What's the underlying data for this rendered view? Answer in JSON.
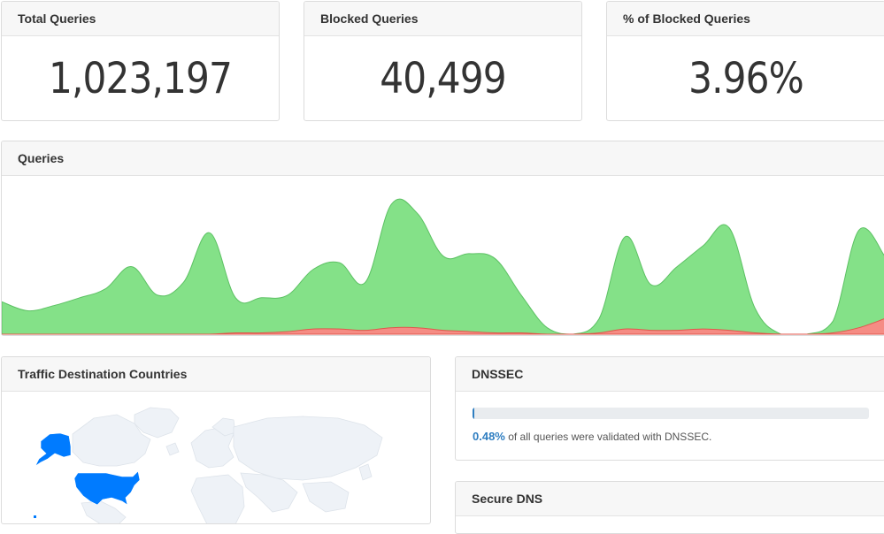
{
  "stats": {
    "total": {
      "label": "Total Queries",
      "value": "1,023,197"
    },
    "blocked": {
      "label": "Blocked Queries",
      "value": "40,499"
    },
    "percent": {
      "label": "% of Blocked Queries",
      "value": "3.96%"
    }
  },
  "queries_card": {
    "title": "Queries"
  },
  "traffic_card": {
    "title": "Traffic Destination Countries"
  },
  "dnssec_card": {
    "title": "DNSSEC",
    "percent_value": "0.48%",
    "fraction": 0.0048,
    "description": "of all queries were validated with DNSSEC."
  },
  "secure_dns_card": {
    "title": "Secure DNS"
  },
  "colors": {
    "allowed": "#84e188",
    "allowed_stroke": "#5cc163",
    "blocked": "#f58c84",
    "blocked_stroke": "#e0564b",
    "highlight_country": "#007bff",
    "map_land": "#eef2f7"
  },
  "chart_data": {
    "type": "area",
    "ylim": [
      0,
      100
    ],
    "series": [
      {
        "key": "allowed",
        "values": [
          25,
          18,
          22,
          28,
          35,
          52,
          30,
          40,
          78,
          28,
          28,
          30,
          50,
          55,
          40,
          100,
          93,
          60,
          62,
          58,
          30,
          5,
          0,
          12,
          75,
          38,
          52,
          68,
          82,
          20,
          0,
          0,
          10,
          80,
          60
        ]
      },
      {
        "key": "blocked",
        "values": [
          0,
          0,
          0,
          0,
          0,
          0,
          0,
          0,
          0,
          1,
          1,
          2,
          4,
          4,
          3,
          5,
          5,
          3,
          2,
          1,
          1,
          0,
          0,
          1,
          4,
          3,
          3,
          4,
          3,
          1,
          0,
          0,
          1,
          5,
          12
        ]
      }
    ]
  }
}
